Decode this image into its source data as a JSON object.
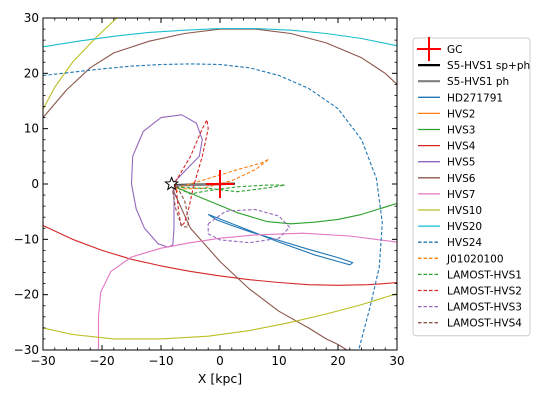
{
  "chart_data": {
    "type": "line",
    "title": "",
    "xlabel": "X [kpc]",
    "ylabel": "",
    "xlim": [
      -30,
      30
    ],
    "ylim": [
      -30,
      30
    ],
    "xticks": [
      -30,
      -20,
      -10,
      0,
      10,
      20,
      30
    ],
    "yticks": [
      -30,
      -20,
      -10,
      0,
      10,
      20,
      30
    ],
    "grid": false,
    "legend_position": "outside-right",
    "markers": [
      {
        "name": "GC",
        "type": "plus",
        "x": 0,
        "y": 0,
        "color": "#ff0000"
      },
      {
        "name": "Sun",
        "type": "star",
        "x": -8.2,
        "y": 0,
        "color": "#000000"
      }
    ],
    "series": [
      {
        "name": "GC",
        "color": "#ff0000",
        "style": "solid",
        "legend_kind": "plus",
        "points": []
      },
      {
        "name": "S5-HVS1 sp+ph",
        "color": "#000000",
        "style": "solid",
        "width": 2.2,
        "points": [
          [
            -8.0,
            -0.2
          ],
          [
            -5,
            -0.12
          ],
          [
            -2,
            -0.05
          ],
          [
            0.5,
            0.0
          ],
          [
            2.5,
            0.05
          ]
        ]
      },
      {
        "name": "S5-HVS1 ph",
        "color": "#808080",
        "style": "solid",
        "width": 2.2,
        "points": [
          [
            -8.0,
            -0.3
          ],
          [
            -5,
            -0.2
          ],
          [
            -2,
            -0.1
          ],
          [
            0,
            -0.05
          ]
        ]
      },
      {
        "name": "HD271791",
        "color": "#1f77b4",
        "style": "solid",
        "points": [
          [
            -2,
            -5.5
          ],
          [
            4,
            -8
          ],
          [
            10,
            -10.5
          ],
          [
            16,
            -12.8
          ],
          [
            20,
            -14
          ],
          [
            22,
            -14.6
          ],
          [
            22.5,
            -14.2
          ],
          [
            20,
            -13.3
          ],
          [
            15,
            -11.8
          ],
          [
            10,
            -10.2
          ],
          [
            5,
            -8.6
          ],
          [
            2,
            -7.5
          ],
          [
            -0.5,
            -6.5
          ],
          [
            -2,
            -5.5
          ]
        ]
      },
      {
        "name": "HVS2",
        "color": "#ff7f0e",
        "style": "solid",
        "points": [
          [
            -8,
            0.5
          ],
          [
            -7.6,
            -0.6
          ],
          [
            -7.2,
            -1.4
          ],
          [
            -7.6,
            -0.8
          ]
        ]
      },
      {
        "name": "HVS3",
        "color": "#2ca02c",
        "style": "solid",
        "points": [
          [
            -7,
            -0.8
          ],
          [
            -2,
            -3
          ],
          [
            3,
            -5.2
          ],
          [
            8,
            -6.8
          ],
          [
            12,
            -7.2
          ],
          [
            16,
            -6.9
          ],
          [
            20,
            -6.4
          ],
          [
            24,
            -5.5
          ],
          [
            27,
            -4.5
          ],
          [
            30,
            -3.5
          ]
        ]
      },
      {
        "name": "HVS4",
        "color": "#d62728",
        "style": "solid",
        "points": [
          [
            -30,
            -7.5
          ],
          [
            -25,
            -10
          ],
          [
            -20,
            -12
          ],
          [
            -15,
            -13.6
          ],
          [
            -10,
            -14.8
          ],
          [
            -5,
            -15.8
          ],
          [
            0,
            -16.6
          ],
          [
            5,
            -17.3
          ],
          [
            10,
            -17.8
          ],
          [
            15,
            -18.2
          ],
          [
            20,
            -18.3
          ],
          [
            25,
            -18.2
          ],
          [
            28,
            -18
          ],
          [
            30,
            -17.8
          ]
        ]
      },
      {
        "name": "HVS5",
        "color": "#9467bd",
        "style": "solid",
        "points": [
          [
            -7.8,
            0.3
          ],
          [
            -3.5,
            5
          ],
          [
            -3,
            8
          ],
          [
            -4,
            11
          ],
          [
            -6.5,
            12.5
          ],
          [
            -10,
            12
          ],
          [
            -13,
            9.5
          ],
          [
            -14.8,
            5
          ],
          [
            -15,
            0
          ],
          [
            -14.2,
            -4.5
          ],
          [
            -12.8,
            -8
          ],
          [
            -10.5,
            -10.8
          ],
          [
            -8.8,
            -11.4
          ],
          [
            -8.0,
            -11
          ],
          [
            -7.8,
            -8
          ],
          [
            -7.8,
            -3
          ],
          [
            -7.8,
            0.3
          ]
        ]
      },
      {
        "name": "HVS6",
        "color": "#8c564b",
        "style": "solid",
        "points": [
          [
            -30,
            12
          ],
          [
            -26,
            17
          ],
          [
            -22,
            21
          ],
          [
            -18,
            23.7
          ],
          [
            -12,
            25.8
          ],
          [
            -6,
            27.2
          ],
          [
            0,
            28
          ],
          [
            6,
            28
          ],
          [
            12,
            27.2
          ],
          [
            18,
            25.5
          ],
          [
            24,
            22.8
          ],
          [
            28,
            20
          ],
          [
            30,
            18
          ]
        ]
      },
      {
        "name": "HVS6 inner",
        "color": "#8c564b",
        "style": "solid",
        "legend": false,
        "points": [
          [
            -8,
            -1
          ],
          [
            -5,
            -8
          ],
          [
            0,
            -14
          ],
          [
            5,
            -19
          ],
          [
            10,
            -23
          ],
          [
            15,
            -26
          ],
          [
            18,
            -28
          ],
          [
            20,
            -29
          ],
          [
            21.5,
            -30
          ]
        ]
      },
      {
        "name": "HVS7",
        "color": "#e377c2",
        "style": "solid",
        "points": [
          [
            30,
            -10.5
          ],
          [
            22,
            -9.4
          ],
          [
            14,
            -8.9
          ],
          [
            6,
            -9.2
          ],
          [
            0,
            -9.8
          ],
          [
            -5,
            -10.6
          ],
          [
            -10,
            -11.6
          ],
          [
            -15,
            -13.2
          ],
          [
            -18.5,
            -15.8
          ],
          [
            -20.2,
            -19.5
          ],
          [
            -20.6,
            -24
          ],
          [
            -20.6,
            -30
          ]
        ]
      },
      {
        "name": "HVS10",
        "color": "#bcbd22",
        "style": "solid",
        "points": [
          [
            -30,
            13.5
          ],
          [
            -28,
            17.5
          ],
          [
            -25,
            22
          ],
          [
            -21,
            26.5
          ],
          [
            -17.5,
            30
          ]
        ]
      },
      {
        "name": "HVS10 lower",
        "color": "#bcbd22",
        "style": "solid",
        "legend": false,
        "points": [
          [
            -30,
            -26
          ],
          [
            -25,
            -27.2
          ],
          [
            -18,
            -28
          ],
          [
            -10,
            -28
          ],
          [
            -2,
            -27.5
          ],
          [
            5,
            -26.5
          ],
          [
            12,
            -25
          ],
          [
            18,
            -23.5
          ],
          [
            24,
            -21.8
          ],
          [
            30,
            -19.8
          ]
        ]
      },
      {
        "name": "HVS20",
        "color": "#17becf",
        "style": "solid",
        "points": [
          [
            -30,
            24.8
          ],
          [
            -24,
            25.8
          ],
          [
            -18,
            26.7
          ],
          [
            -12,
            27.4
          ],
          [
            -6,
            27.8
          ],
          [
            0,
            28.1
          ],
          [
            6,
            28.1
          ],
          [
            12,
            27.8
          ],
          [
            18,
            27.2
          ],
          [
            24,
            26.3
          ],
          [
            30,
            25.0
          ]
        ]
      },
      {
        "name": "HVS24",
        "color": "#1f77b4",
        "style": "dashed",
        "points": [
          [
            -30,
            19.6
          ],
          [
            -25,
            20.2
          ],
          [
            -20,
            20.8
          ],
          [
            -15,
            21.3
          ],
          [
            -10,
            21.6
          ],
          [
            -5,
            21.7
          ],
          [
            0,
            21.6
          ],
          [
            5,
            21
          ],
          [
            10,
            19.6
          ],
          [
            15,
            17.3
          ],
          [
            20,
            13.6
          ],
          [
            24,
            8
          ],
          [
            26.5,
            1
          ],
          [
            27.5,
            -7
          ],
          [
            27,
            -15
          ],
          [
            25.5,
            -22
          ],
          [
            24,
            -28
          ],
          [
            23.5,
            -30
          ]
        ]
      },
      {
        "name": "J01020100",
        "color": "#ff7f0e",
        "style": "dashed",
        "points": [
          [
            -7.5,
            -0.8
          ],
          [
            -2,
            1
          ],
          [
            3,
            2.6
          ],
          [
            7,
            3.8
          ],
          [
            8.3,
            4.5
          ],
          [
            6,
            2.6
          ],
          [
            2,
            0.6
          ],
          [
            -3,
            -0.8
          ],
          [
            -7,
            -0.9
          ]
        ]
      },
      {
        "name": "LAMOST-HVS1",
        "color": "#2ca02c",
        "style": "dashed",
        "points": [
          [
            -7.5,
            -0.6
          ],
          [
            -2,
            -0.8
          ],
          [
            3,
            -1.4
          ],
          [
            8,
            -0.7
          ],
          [
            11,
            -0.2
          ],
          [
            8,
            -0.2
          ],
          [
            3,
            -0.5
          ],
          [
            -2,
            -1.2
          ],
          [
            -5,
            -1.8
          ],
          [
            -7.5,
            -0.6
          ]
        ]
      },
      {
        "name": "LAMOST-HVS2",
        "color": "#d62728",
        "style": "dashed",
        "points": [
          [
            -7.6,
            0.3
          ],
          [
            -5,
            5
          ],
          [
            -3,
            10
          ],
          [
            -2.2,
            11.6
          ],
          [
            -2.0,
            10
          ],
          [
            -3,
            5
          ],
          [
            -4.5,
            -0.5
          ],
          [
            -5.2,
            -4
          ],
          [
            -6,
            -7
          ],
          [
            -6.6,
            -7.6
          ],
          [
            -7,
            -5
          ],
          [
            -7.3,
            -2
          ],
          [
            -7.6,
            0.3
          ]
        ]
      },
      {
        "name": "LAMOST-HVS3",
        "color": "#9467bd",
        "style": "dashed",
        "points": [
          [
            -2,
            -7.2
          ],
          [
            1,
            -4.9
          ],
          [
            6,
            -4.6
          ],
          [
            10,
            -5.8
          ],
          [
            11.8,
            -7.8
          ],
          [
            10,
            -9.8
          ],
          [
            5,
            -10.6
          ],
          [
            0,
            -10.1
          ],
          [
            -2,
            -9
          ],
          [
            -2,
            -7.2
          ]
        ]
      },
      {
        "name": "LAMOST-HVS4",
        "color": "#8c564b",
        "style": "dashed",
        "points": [
          [
            -7.8,
            0.5
          ],
          [
            -6,
            -3
          ],
          [
            -5.3,
            -6.5
          ],
          [
            -5.5,
            -7.8
          ],
          [
            -6.5,
            -7.6
          ],
          [
            -7.5,
            -4.5
          ],
          [
            -8,
            -1.5
          ],
          [
            -7.8,
            0.5
          ]
        ]
      }
    ]
  }
}
